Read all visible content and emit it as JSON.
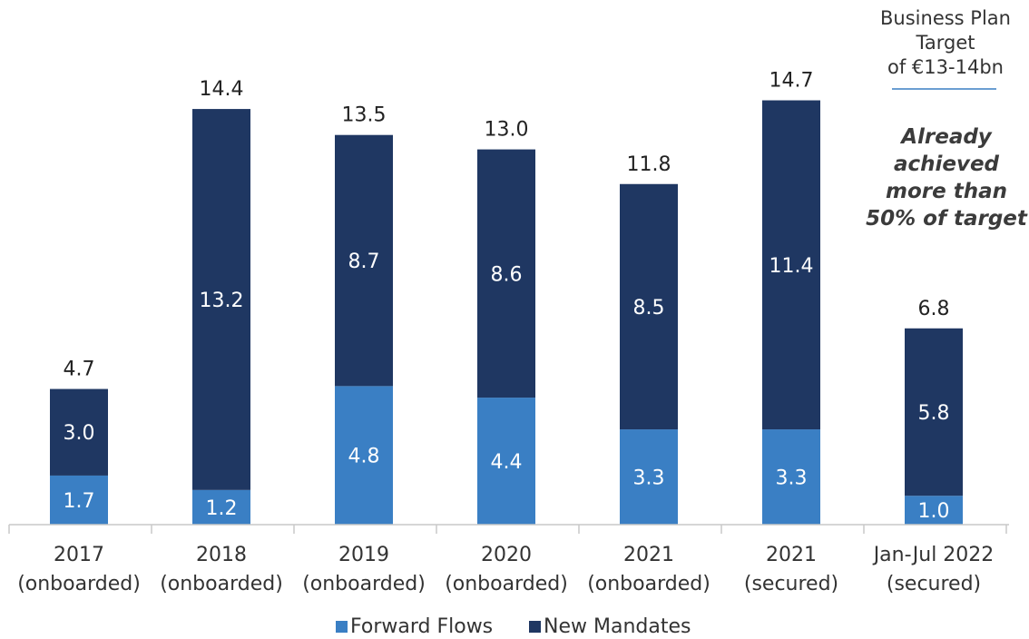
{
  "chart_data": {
    "type": "bar",
    "stacked": true,
    "categories": [
      [
        "2017",
        "(onboarded)"
      ],
      [
        "2018",
        "(onboarded)"
      ],
      [
        "2019",
        "(onboarded)"
      ],
      [
        "2020",
        "(onboarded)"
      ],
      [
        "2021",
        "(onboarded)"
      ],
      [
        "2021",
        "(secured)"
      ],
      [
        "Jan-Jul 2022",
        "(secured)"
      ]
    ],
    "series": [
      {
        "name": "Forward Flows",
        "color": "#3a7fc4",
        "values": [
          1.7,
          1.2,
          4.8,
          4.4,
          3.3,
          3.3,
          1.0
        ]
      },
      {
        "name": "New Mandates",
        "color": "#1f3762",
        "values": [
          3.0,
          13.2,
          8.7,
          8.6,
          8.5,
          11.4,
          5.8
        ]
      }
    ],
    "totals": [
      4.7,
      14.4,
      13.5,
      13.0,
      11.8,
      14.7,
      6.8
    ],
    "ylim": [
      0,
      16.5
    ],
    "grid": false,
    "legend": "bottom"
  },
  "annotation": {
    "business_plan": [
      "Business Plan",
      "Target",
      "of €13-14bn"
    ],
    "achieved": [
      "Already",
      "achieved",
      "more than",
      "50% of target"
    ],
    "line_color": "#3a7fc4"
  }
}
